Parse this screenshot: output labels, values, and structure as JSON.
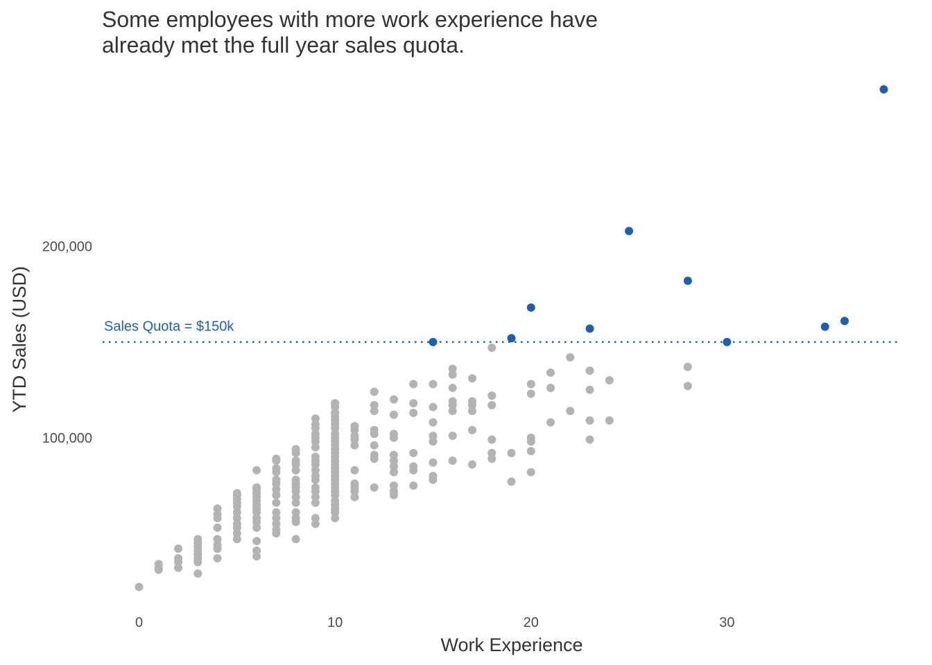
{
  "chart_data": {
    "type": "scatter",
    "title_lines": [
      "Some employees with more work experience have",
      "already met the full year sales quota."
    ],
    "xlabel": "Work Experience",
    "ylabel": "YTD Sales (USD)",
    "xlim": [
      -2,
      40
    ],
    "ylim": [
      12000,
      286000
    ],
    "x_ticks": [
      0,
      10,
      20,
      30
    ],
    "x_tick_labels": [
      "0",
      "10",
      "20",
      "30"
    ],
    "y_ticks": [
      100000,
      200000
    ],
    "y_tick_labels": [
      "100,000",
      "200,000"
    ],
    "grid": false,
    "quota": {
      "value": 150000,
      "label": "Sales Quota = $150k",
      "color": "#1F5FAE",
      "style": "dotted"
    },
    "colors": {
      "below_quota": "#B3B3B3",
      "met_quota": "#1F5FAE"
    },
    "series": [
      {
        "group": "below_quota",
        "points": [
          [
            0,
            22000
          ],
          [
            1,
            32000
          ],
          [
            1,
            34000
          ],
          [
            1,
            31000
          ],
          [
            2,
            32000
          ],
          [
            2,
            35000
          ],
          [
            2,
            37000
          ],
          [
            2,
            42000
          ],
          [
            3,
            29000
          ],
          [
            3,
            35000
          ],
          [
            3,
            37000
          ],
          [
            3,
            39000
          ],
          [
            3,
            41000
          ],
          [
            3,
            43000
          ],
          [
            3,
            45000
          ],
          [
            3,
            47000
          ],
          [
            4,
            37000
          ],
          [
            4,
            42000
          ],
          [
            4,
            44000
          ],
          [
            4,
            47000
          ],
          [
            4,
            53000
          ],
          [
            4,
            58000
          ],
          [
            4,
            60000
          ],
          [
            4,
            63000
          ],
          [
            5,
            47000
          ],
          [
            5,
            50000
          ],
          [
            5,
            53000
          ],
          [
            5,
            55000
          ],
          [
            5,
            58000
          ],
          [
            5,
            61000
          ],
          [
            5,
            64000
          ],
          [
            5,
            66000
          ],
          [
            5,
            68000
          ],
          [
            5,
            70000
          ],
          [
            5,
            71000
          ],
          [
            6,
            38000
          ],
          [
            6,
            41000
          ],
          [
            6,
            46000
          ],
          [
            6,
            53000
          ],
          [
            6,
            56000
          ],
          [
            6,
            58000
          ],
          [
            6,
            61000
          ],
          [
            6,
            63000
          ],
          [
            6,
            65000
          ],
          [
            6,
            67000
          ],
          [
            6,
            69000
          ],
          [
            6,
            71000
          ],
          [
            6,
            73000
          ],
          [
            6,
            74000
          ],
          [
            6,
            83000
          ],
          [
            7,
            50000
          ],
          [
            7,
            52000
          ],
          [
            7,
            55000
          ],
          [
            7,
            58000
          ],
          [
            7,
            61000
          ],
          [
            7,
            66000
          ],
          [
            7,
            70000
          ],
          [
            7,
            73000
          ],
          [
            7,
            76000
          ],
          [
            7,
            78000
          ],
          [
            7,
            82000
          ],
          [
            7,
            84000
          ],
          [
            7,
            88000
          ],
          [
            7,
            89000
          ],
          [
            8,
            47000
          ],
          [
            8,
            56000
          ],
          [
            8,
            58000
          ],
          [
            8,
            61000
          ],
          [
            8,
            66000
          ],
          [
            8,
            69000
          ],
          [
            8,
            72000
          ],
          [
            8,
            74000
          ],
          [
            8,
            76000
          ],
          [
            8,
            78000
          ],
          [
            8,
            83000
          ],
          [
            8,
            86000
          ],
          [
            8,
            88000
          ],
          [
            8,
            92000
          ],
          [
            8,
            94000
          ],
          [
            9,
            55000
          ],
          [
            9,
            58000
          ],
          [
            9,
            66000
          ],
          [
            9,
            69000
          ],
          [
            9,
            72000
          ],
          [
            9,
            74000
          ],
          [
            9,
            78000
          ],
          [
            9,
            80000
          ],
          [
            9,
            83000
          ],
          [
            9,
            86000
          ],
          [
            9,
            88000
          ],
          [
            9,
            90000
          ],
          [
            9,
            95000
          ],
          [
            9,
            98000
          ],
          [
            9,
            100000
          ],
          [
            9,
            102000
          ],
          [
            9,
            105000
          ],
          [
            9,
            107000
          ],
          [
            9,
            110000
          ],
          [
            10,
            58000
          ],
          [
            10,
            61000
          ],
          [
            10,
            63000
          ],
          [
            10,
            65000
          ],
          [
            10,
            67000
          ],
          [
            10,
            70000
          ],
          [
            10,
            72000
          ],
          [
            10,
            74000
          ],
          [
            10,
            76000
          ],
          [
            10,
            78000
          ],
          [
            10,
            80000
          ],
          [
            10,
            82000
          ],
          [
            10,
            84000
          ],
          [
            10,
            86000
          ],
          [
            10,
            88000
          ],
          [
            10,
            90000
          ],
          [
            10,
            92000
          ],
          [
            10,
            94000
          ],
          [
            10,
            96000
          ],
          [
            10,
            98000
          ],
          [
            10,
            100000
          ],
          [
            10,
            102000
          ],
          [
            10,
            105000
          ],
          [
            10,
            107000
          ],
          [
            10,
            109000
          ],
          [
            10,
            111000
          ],
          [
            10,
            113000
          ],
          [
            10,
            116000
          ],
          [
            10,
            118000
          ],
          [
            11,
            69000
          ],
          [
            11,
            72000
          ],
          [
            11,
            74000
          ],
          [
            11,
            76000
          ],
          [
            11,
            83000
          ],
          [
            11,
            96000
          ],
          [
            11,
            99000
          ],
          [
            11,
            101000
          ],
          [
            11,
            104000
          ],
          [
            11,
            106000
          ],
          [
            12,
            74000
          ],
          [
            12,
            89000
          ],
          [
            12,
            91000
          ],
          [
            12,
            96000
          ],
          [
            12,
            102000
          ],
          [
            12,
            104000
          ],
          [
            12,
            114000
          ],
          [
            12,
            117000
          ],
          [
            12,
            124000
          ],
          [
            13,
            70000
          ],
          [
            13,
            72000
          ],
          [
            13,
            75000
          ],
          [
            13,
            82000
          ],
          [
            13,
            85000
          ],
          [
            13,
            88000
          ],
          [
            13,
            91000
          ],
          [
            13,
            100000
          ],
          [
            13,
            102000
          ],
          [
            13,
            112000
          ],
          [
            13,
            120000
          ],
          [
            14,
            75000
          ],
          [
            14,
            83000
          ],
          [
            14,
            85000
          ],
          [
            14,
            92000
          ],
          [
            14,
            113000
          ],
          [
            14,
            118000
          ],
          [
            14,
            128000
          ],
          [
            15,
            78000
          ],
          [
            15,
            80000
          ],
          [
            15,
            87000
          ],
          [
            15,
            98000
          ],
          [
            15,
            101000
          ],
          [
            15,
            108000
          ],
          [
            15,
            116000
          ],
          [
            15,
            128000
          ],
          [
            16,
            88000
          ],
          [
            16,
            101000
          ],
          [
            16,
            114000
          ],
          [
            16,
            117000
          ],
          [
            16,
            119000
          ],
          [
            16,
            126000
          ],
          [
            16,
            133000
          ],
          [
            16,
            136000
          ],
          [
            17,
            86000
          ],
          [
            17,
            104000
          ],
          [
            17,
            114000
          ],
          [
            17,
            117000
          ],
          [
            17,
            119000
          ],
          [
            17,
            131000
          ],
          [
            18,
            89000
          ],
          [
            18,
            92000
          ],
          [
            18,
            99000
          ],
          [
            18,
            117000
          ],
          [
            18,
            122000
          ],
          [
            18,
            147000
          ],
          [
            19,
            77000
          ],
          [
            19,
            92000
          ],
          [
            20,
            82000
          ],
          [
            20,
            93000
          ],
          [
            20,
            98000
          ],
          [
            20,
            100000
          ],
          [
            20,
            123000
          ],
          [
            20,
            128000
          ],
          [
            21,
            108000
          ],
          [
            21,
            126000
          ],
          [
            21,
            134000
          ],
          [
            22,
            114000
          ],
          [
            22,
            142000
          ],
          [
            23,
            99000
          ],
          [
            23,
            109000
          ],
          [
            23,
            125000
          ],
          [
            23,
            135000
          ],
          [
            24,
            109000
          ],
          [
            24,
            130000
          ],
          [
            28,
            127000
          ],
          [
            28,
            137000
          ]
        ]
      },
      {
        "group": "met_quota",
        "points": [
          [
            15,
            150000
          ],
          [
            19,
            152000
          ],
          [
            20,
            168000
          ],
          [
            23,
            157000
          ],
          [
            25,
            208000
          ],
          [
            28,
            182000
          ],
          [
            30,
            150000
          ],
          [
            35,
            158000
          ],
          [
            36,
            161000
          ],
          [
            38,
            282000
          ]
        ]
      }
    ]
  }
}
